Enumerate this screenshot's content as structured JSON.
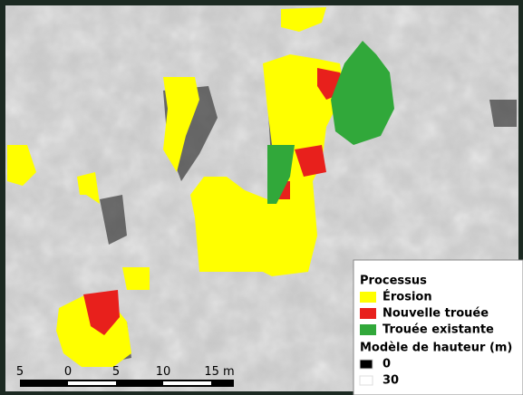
{
  "legend": {
    "title": "Processus",
    "items": [
      {
        "label": "Érosion",
        "color": "#ffff00"
      },
      {
        "label": "Nouvelle trouée",
        "color": "#e8201c"
      },
      {
        "label": "Trouée existante",
        "color": "#31a83a"
      }
    ],
    "height_title": "Modèle de hauteur (m)",
    "height_items": [
      {
        "label": "0",
        "color": "#000000"
      },
      {
        "label": "30",
        "color": "#ffffff"
      }
    ]
  },
  "scale_bar": {
    "labels": [
      "5",
      "0",
      "5",
      "10",
      "15 m"
    ]
  }
}
